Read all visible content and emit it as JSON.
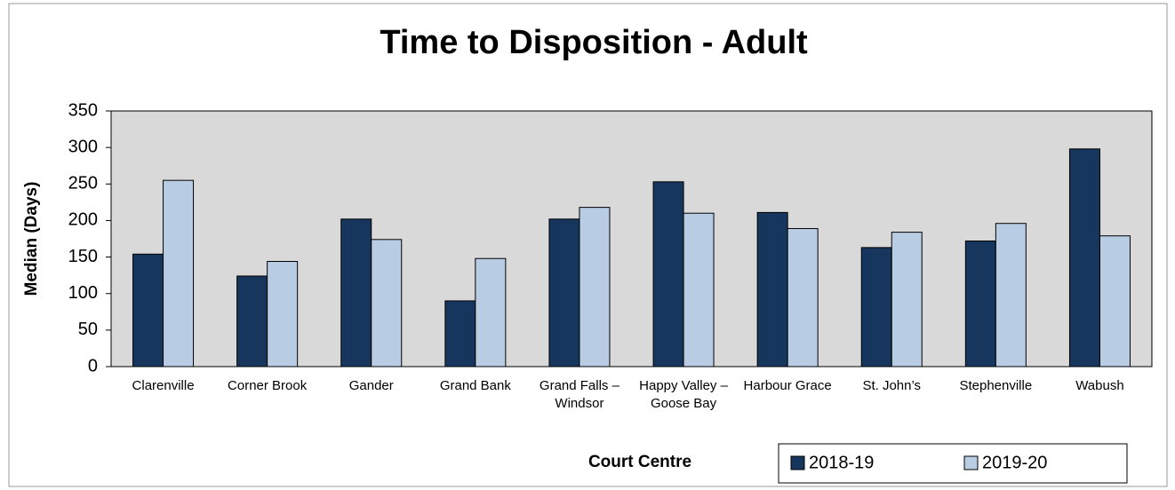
{
  "chart_data": {
    "type": "bar",
    "title": "Time to Disposition - Adult",
    "x_label": "Court Centre",
    "y_label": "Median (Days)",
    "categories": [
      "Clarenville",
      "Corner Brook",
      "Gander",
      "Grand Bank",
      "Grand Falls – Windsor",
      "Happy Valley – Goose Bay",
      "Harbour Grace",
      "St. John’s",
      "Stephenville",
      "Wabush"
    ],
    "series": [
      {
        "name": "2018-19",
        "color": "#17365d",
        "values": [
          154,
          124,
          202,
          90,
          202,
          253,
          211,
          163,
          172,
          298
        ]
      },
      {
        "name": "2019-20",
        "color": "#b8cce4",
        "values": [
          255,
          144,
          174,
          148,
          218,
          210,
          189,
          184,
          196,
          179
        ]
      }
    ],
    "ylim": [
      0,
      350
    ],
    "yticks": [
      0,
      50,
      100,
      150,
      200,
      250,
      300,
      350
    ],
    "grid": false,
    "legend": "bottom-right"
  }
}
